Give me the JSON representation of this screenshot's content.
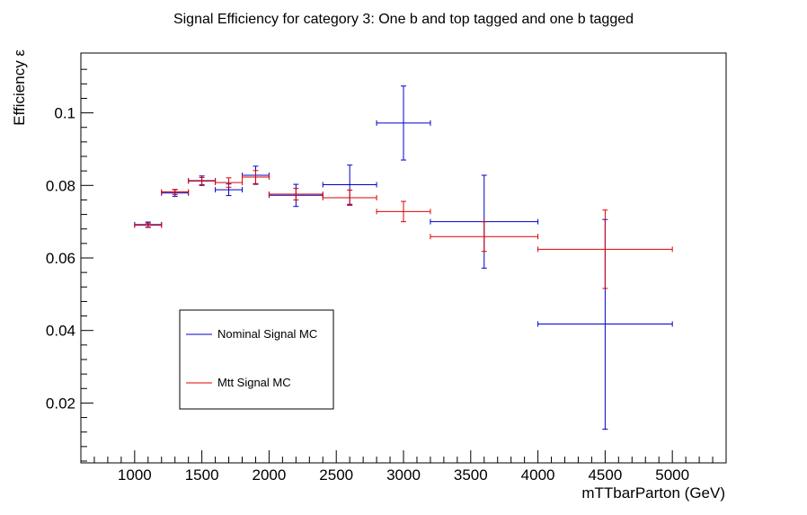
{
  "chart_data": {
    "type": "scatter",
    "title": "Signal Efficiency for category 3: One b and top tagged and one b tagged",
    "xlabel": "mTTbarParton (GeV)",
    "ylabel": "Efficiency ε",
    "xlim": [
      600,
      5400
    ],
    "ylim": [
      0.0035,
      0.1165
    ],
    "x_ticks": [
      1000,
      1500,
      2000,
      2500,
      3000,
      3500,
      4000,
      4500,
      5000
    ],
    "x_tick_labels": [
      "1000",
      "1500",
      "2000",
      "2500",
      "3000",
      "3500",
      "4000",
      "4500",
      "5000"
    ],
    "y_ticks": [
      0.02,
      0.04,
      0.06,
      0.08,
      0.1
    ],
    "y_tick_labels": [
      "0.02",
      "0.04",
      "0.06",
      "0.08",
      "0.1"
    ],
    "grid": false,
    "legend_position": "lower-left",
    "series": [
      {
        "name": "Nominal Signal MC",
        "color": "#0000cc",
        "points": [
          {
            "x": 1100,
            "xlo": 1000,
            "xhi": 1200,
            "y": 0.0692,
            "ylo": 0.0685,
            "yhi": 0.0699
          },
          {
            "x": 1300,
            "xlo": 1200,
            "xhi": 1400,
            "y": 0.0779,
            "ylo": 0.077,
            "yhi": 0.0788
          },
          {
            "x": 1500,
            "xlo": 1400,
            "xhi": 1600,
            "y": 0.0813,
            "ylo": 0.08,
            "yhi": 0.0826
          },
          {
            "x": 1700,
            "xlo": 1600,
            "xhi": 1800,
            "y": 0.0788,
            "ylo": 0.0772,
            "yhi": 0.0804
          },
          {
            "x": 1900,
            "xlo": 1800,
            "xhi": 2000,
            "y": 0.0828,
            "ylo": 0.0803,
            "yhi": 0.0853
          },
          {
            "x": 2200,
            "xlo": 2000,
            "xhi": 2400,
            "y": 0.0773,
            "ylo": 0.0742,
            "yhi": 0.0803
          },
          {
            "x": 2600,
            "xlo": 2400,
            "xhi": 2800,
            "y": 0.0802,
            "ylo": 0.0748,
            "yhi": 0.0856
          },
          {
            "x": 3000,
            "xlo": 2800,
            "xhi": 3200,
            "y": 0.0972,
            "ylo": 0.087,
            "yhi": 0.1074
          },
          {
            "x": 3600,
            "xlo": 3200,
            "xhi": 4000,
            "y": 0.07,
            "ylo": 0.0572,
            "yhi": 0.0828
          },
          {
            "x": 4500,
            "xlo": 4000,
            "xhi": 5000,
            "y": 0.0418,
            "ylo": 0.0128,
            "yhi": 0.0706
          }
        ]
      },
      {
        "name": "Mtt Signal MC",
        "color": "#dd0000",
        "points": [
          {
            "x": 1100,
            "xlo": 1000,
            "xhi": 1200,
            "y": 0.069,
            "ylo": 0.0684,
            "yhi": 0.0696
          },
          {
            "x": 1300,
            "xlo": 1200,
            "xhi": 1400,
            "y": 0.0782,
            "ylo": 0.0775,
            "yhi": 0.0789
          },
          {
            "x": 1500,
            "xlo": 1400,
            "xhi": 1600,
            "y": 0.0812,
            "ylo": 0.0802,
            "yhi": 0.0822
          },
          {
            "x": 1700,
            "xlo": 1600,
            "xhi": 1800,
            "y": 0.0808,
            "ylo": 0.0795,
            "yhi": 0.0821
          },
          {
            "x": 1900,
            "xlo": 1800,
            "xhi": 2000,
            "y": 0.0823,
            "ylo": 0.0805,
            "yhi": 0.0841
          },
          {
            "x": 2200,
            "xlo": 2000,
            "xhi": 2400,
            "y": 0.0776,
            "ylo": 0.076,
            "yhi": 0.0792
          },
          {
            "x": 2600,
            "xlo": 2400,
            "xhi": 2800,
            "y": 0.0766,
            "ylo": 0.0745,
            "yhi": 0.0787
          },
          {
            "x": 3000,
            "xlo": 2800,
            "xhi": 3200,
            "y": 0.0728,
            "ylo": 0.07,
            "yhi": 0.0756
          },
          {
            "x": 3600,
            "xlo": 3200,
            "xhi": 4000,
            "y": 0.0659,
            "ylo": 0.0618,
            "yhi": 0.07
          },
          {
            "x": 4500,
            "xlo": 4000,
            "xhi": 5000,
            "y": 0.0624,
            "ylo": 0.0516,
            "yhi": 0.0732
          }
        ]
      }
    ]
  }
}
